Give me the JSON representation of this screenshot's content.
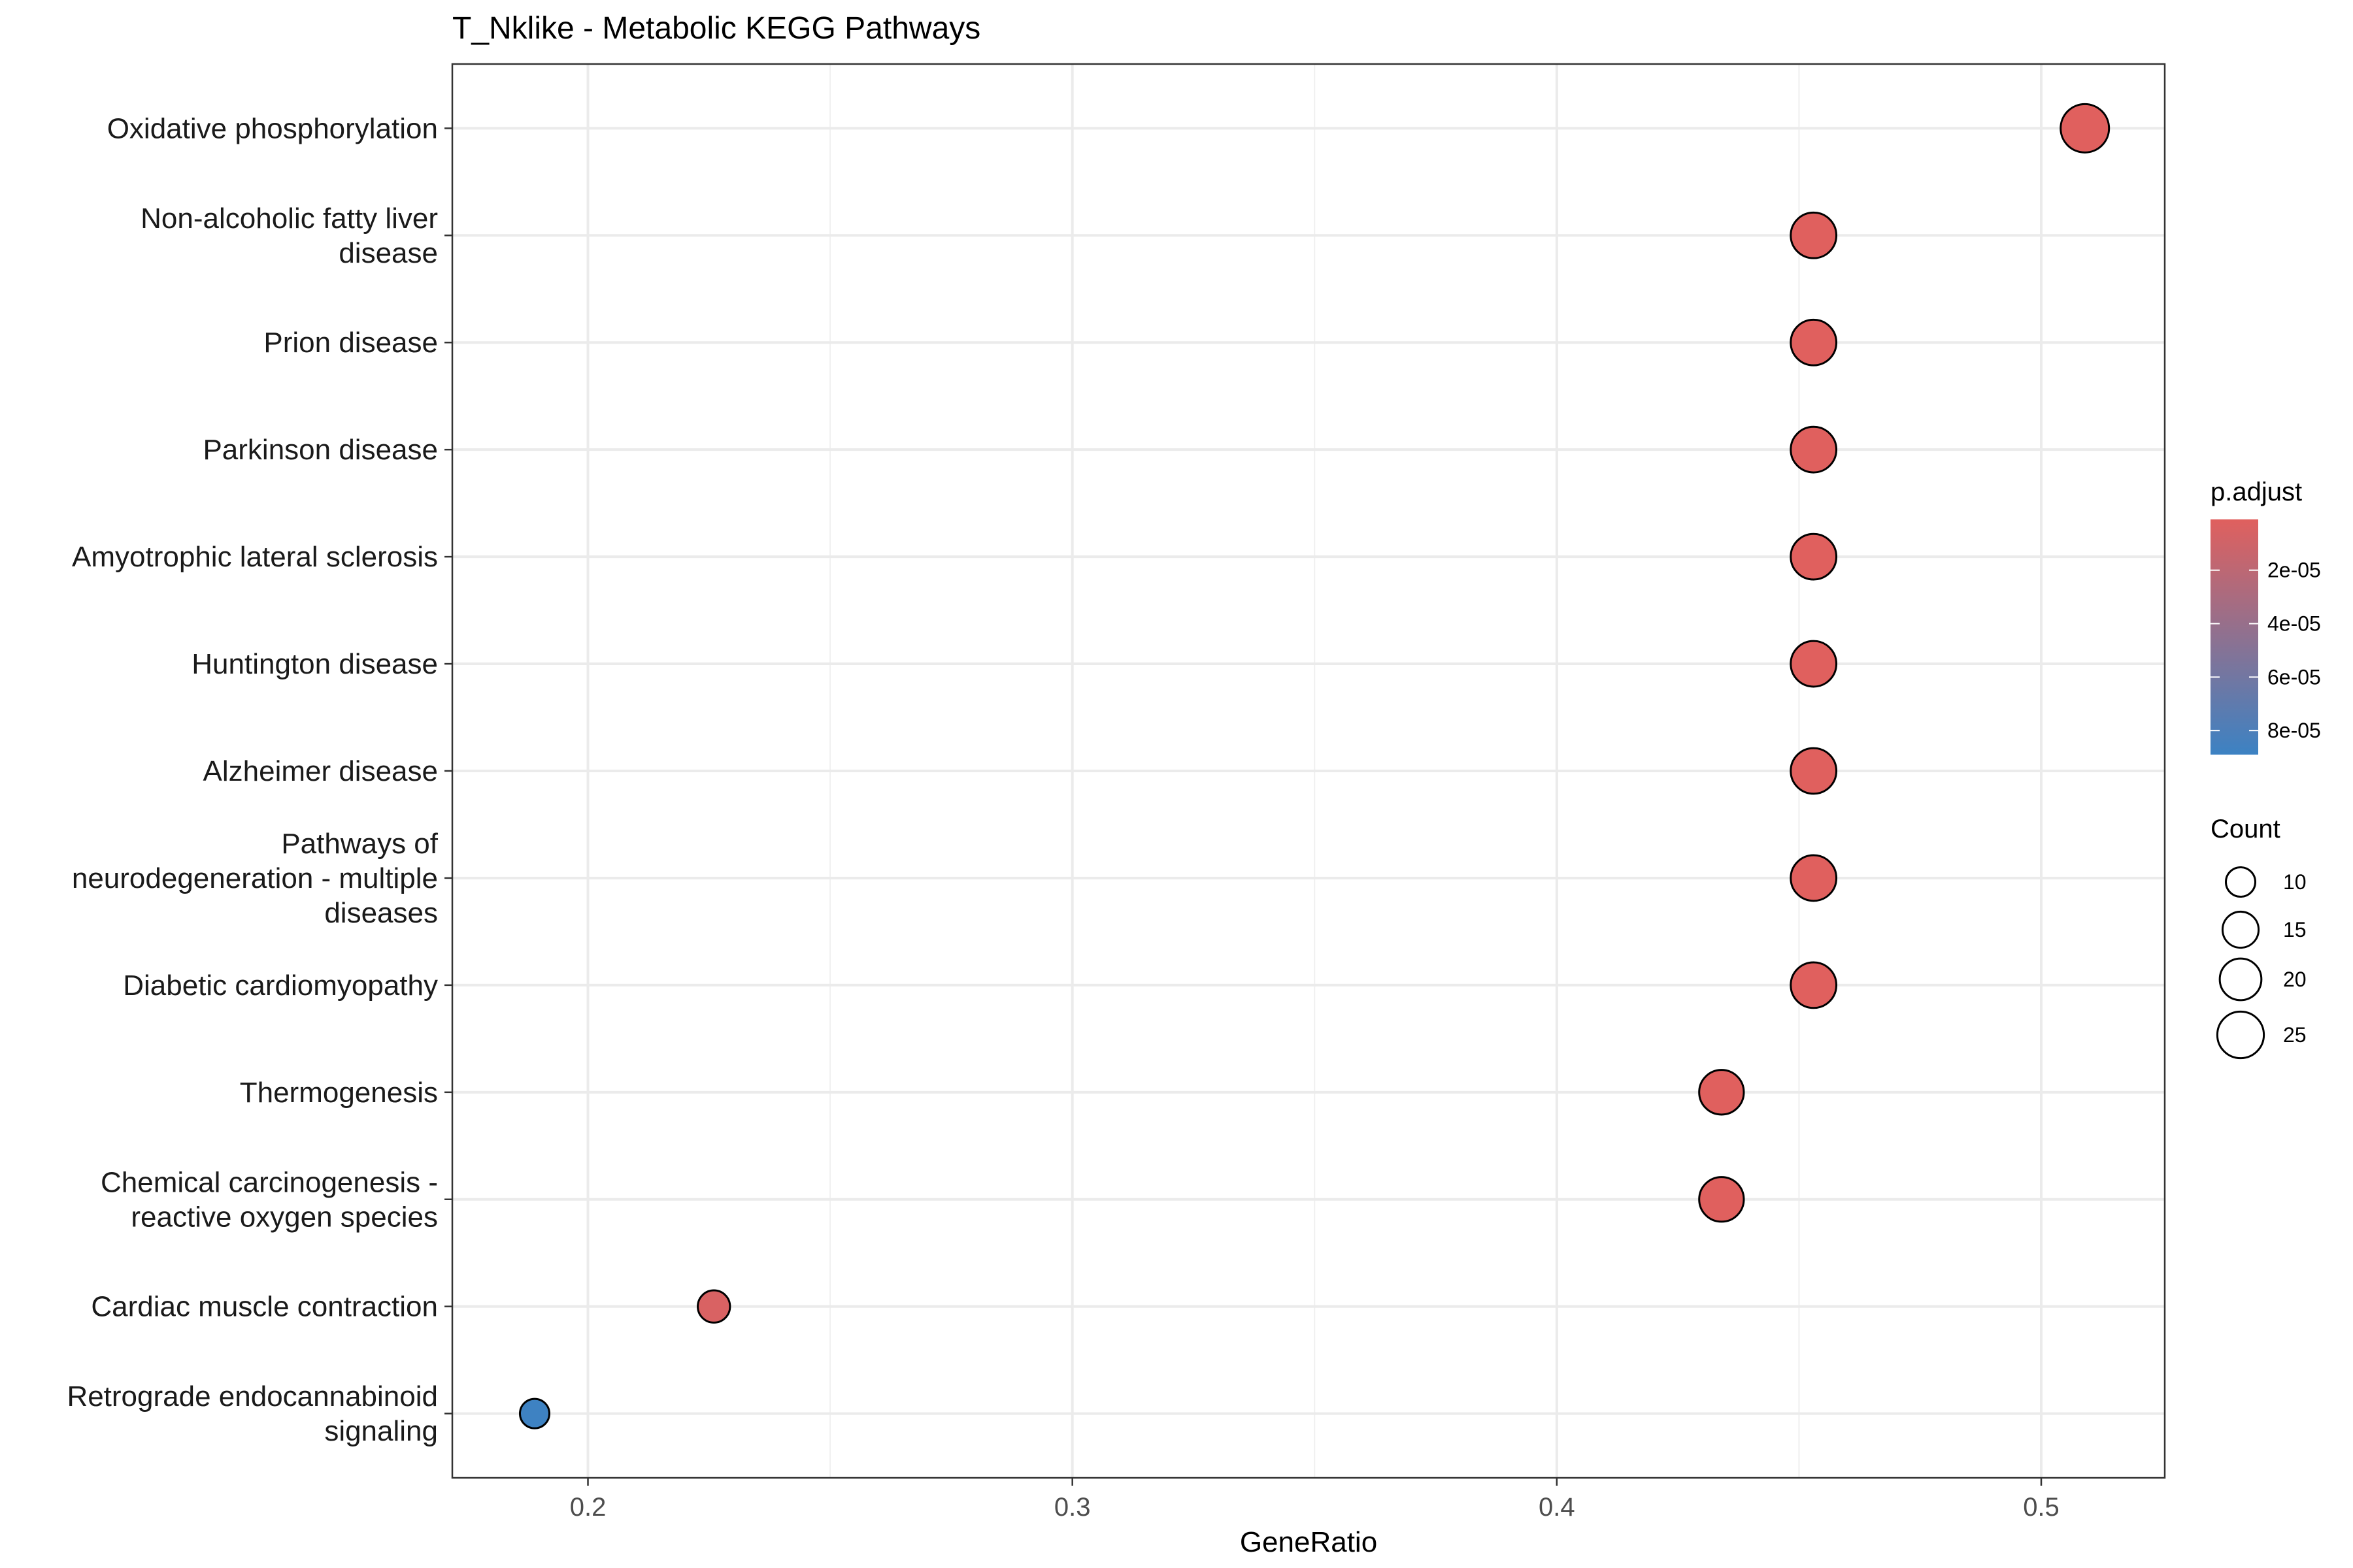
{
  "chart_data": {
    "type": "scatter",
    "title": "T_Nklike - Metabolic KEGG Pathways",
    "xlabel": "GeneRatio",
    "ylabel": "",
    "xlim": [
      0.172,
      0.5255
    ],
    "xticks": [
      0.2,
      0.3,
      0.4,
      0.5
    ],
    "xtick_labels": [
      "0.2",
      "0.3",
      "0.4",
      "0.5"
    ],
    "grid": true,
    "legend_position": "right",
    "categories": [
      "Oxidative phosphorylation",
      "Non-alcoholic fatty liver\ndisease",
      "Prion disease",
      "Parkinson disease",
      "Amyotrophic lateral sclerosis",
      "Huntington disease",
      "Alzheimer disease",
      "Pathways of\nneurodegeneration - multiple\ndiseases",
      "Diabetic cardiomyopathy",
      "Thermogenesis",
      "Chemical carcinogenesis -\nreactive oxygen species",
      "Cardiac muscle contraction",
      "Retrograde endocannabinoid\nsignaling"
    ],
    "points": [
      {
        "pathway": "Oxidative phosphorylation",
        "gene_ratio": 0.509,
        "count": 27,
        "p_adjust": 1e-06
      },
      {
        "pathway": "Non-alcoholic fatty liver disease",
        "gene_ratio": 0.453,
        "count": 24,
        "p_adjust": 1e-06
      },
      {
        "pathway": "Prion disease",
        "gene_ratio": 0.453,
        "count": 24,
        "p_adjust": 1e-06
      },
      {
        "pathway": "Parkinson disease",
        "gene_ratio": 0.453,
        "count": 24,
        "p_adjust": 1e-06
      },
      {
        "pathway": "Amyotrophic lateral sclerosis",
        "gene_ratio": 0.453,
        "count": 24,
        "p_adjust": 1e-06
      },
      {
        "pathway": "Huntington disease",
        "gene_ratio": 0.453,
        "count": 24,
        "p_adjust": 1e-06
      },
      {
        "pathway": "Alzheimer disease",
        "gene_ratio": 0.453,
        "count": 24,
        "p_adjust": 1e-06
      },
      {
        "pathway": "Pathways of neurodegeneration - multiple diseases",
        "gene_ratio": 0.453,
        "count": 24,
        "p_adjust": 1e-06
      },
      {
        "pathway": "Diabetic cardiomyopathy",
        "gene_ratio": 0.453,
        "count": 24,
        "p_adjust": 1e-06
      },
      {
        "pathway": "Thermogenesis",
        "gene_ratio": 0.434,
        "count": 23,
        "p_adjust": 1e-06
      },
      {
        "pathway": "Chemical carcinogenesis - reactive oxygen species",
        "gene_ratio": 0.434,
        "count": 23,
        "p_adjust": 1e-06
      },
      {
        "pathway": "Cardiac muscle contraction",
        "gene_ratio": 0.226,
        "count": 12,
        "p_adjust": 5e-06
      },
      {
        "pathway": "Retrograde endocannabinoid signaling",
        "gene_ratio": 0.189,
        "count": 10,
        "p_adjust": 8.8e-05
      }
    ],
    "color_legend": {
      "title": "p.adjust",
      "low_color": "#E0605E",
      "high_color": "#3C82C3",
      "range": [
        1e-06,
        8.9e-05
      ],
      "ticks": [
        2e-05,
        4e-05,
        6e-05,
        8e-05
      ],
      "tick_labels": [
        "2e-05",
        "4e-05",
        "6e-05",
        "8e-05"
      ]
    },
    "size_legend": {
      "title": "Count",
      "values": [
        10,
        15,
        20,
        25
      ],
      "labels": [
        "10",
        "15",
        "20",
        "25"
      ]
    }
  }
}
